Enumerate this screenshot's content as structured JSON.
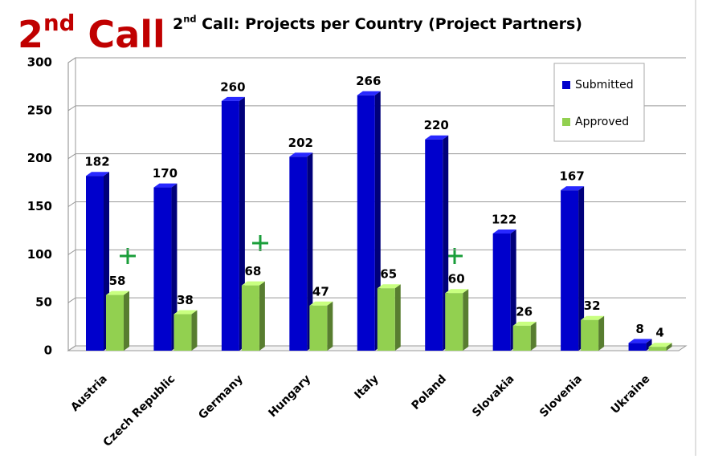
{
  "heading": "2nd Call",
  "chart_data": {
    "type": "bar",
    "title": "2nd Call: Projects per Country (Project Partners)",
    "categories": [
      "Austria",
      "Czech Republic",
      "Germany",
      "Hungary",
      "Italy",
      "Poland",
      "Slovakia",
      "Slovenia",
      "Ukraine"
    ],
    "series": [
      {
        "name": "Submitted",
        "color": "#0000cc",
        "values": [
          182,
          170,
          260,
          202,
          266,
          220,
          122,
          167,
          8
        ]
      },
      {
        "name": "Approved",
        "color": "#92d050",
        "values": [
          58,
          38,
          68,
          47,
          65,
          60,
          26,
          32,
          4
        ]
      }
    ],
    "ylim": [
      0,
      300
    ],
    "yticks": [
      0,
      50,
      100,
      150,
      200,
      250,
      300
    ],
    "grid": true,
    "legend": "top-right"
  }
}
